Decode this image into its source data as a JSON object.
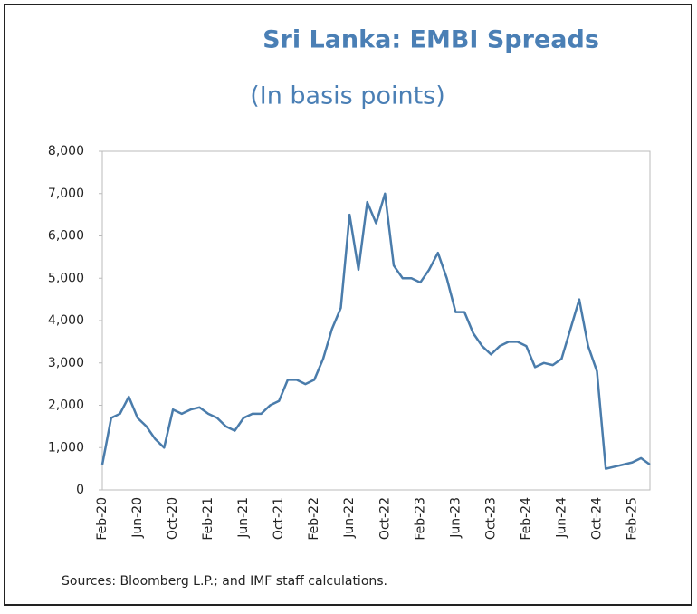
{
  "chart_data": {
    "type": "line",
    "title": "Sri Lanka: EMBI Spreads",
    "subtitle": "(In basis points)",
    "source": "Sources: Bloomberg L.P.; and IMF staff calculations.",
    "x": [
      "Feb-20",
      null,
      null,
      null,
      "Jun-20",
      null,
      null,
      null,
      "Oct-20",
      null,
      null,
      null,
      "Feb-21",
      null,
      null,
      null,
      "Jun-21",
      null,
      null,
      null,
      "Oct-21",
      null,
      null,
      null,
      "Feb-22",
      null,
      null,
      null,
      "Jun-22",
      null,
      null,
      null,
      "Oct-22",
      null,
      null,
      null,
      "Feb-23",
      null,
      null,
      null,
      "Jun-23",
      null,
      null,
      null,
      "Oct-23",
      null,
      null,
      null,
      "Feb-24",
      null,
      null,
      null,
      "Jun-24",
      null,
      null,
      null,
      "Oct-24",
      null,
      null,
      null,
      "Feb-25",
      null,
      null
    ],
    "values": [
      600,
      1700,
      1800,
      2200,
      1700,
      1500,
      1200,
      1000,
      1900,
      1800,
      1900,
      1950,
      1800,
      1700,
      1500,
      1400,
      1700,
      1800,
      1800,
      2000,
      2100,
      2600,
      2600,
      2500,
      2600,
      3100,
      3800,
      4300,
      6500,
      5200,
      6800,
      6300,
      7000,
      5300,
      5000,
      5000,
      4900,
      5200,
      5600,
      5000,
      4200,
      4200,
      3700,
      3400,
      3200,
      3400,
      3500,
      3500,
      3400,
      2900,
      3000,
      2950,
      3100,
      3800,
      4500,
      3400,
      2800,
      500,
      550,
      600,
      650,
      750,
      600
    ],
    "color": "#4a7cab",
    "ylim": [
      0,
      8000
    ],
    "yticks": [
      0,
      {
        "value": 1000,
        "label": "1,000"
      },
      {
        "value": 2000,
        "label": "2,000"
      },
      {
        "value": 3000,
        "label": "3,000"
      },
      {
        "value": 4000,
        "label": "4,000"
      },
      {
        "value": 5000,
        "label": "5,000"
      },
      {
        "value": 6000,
        "label": "6,000"
      },
      {
        "value": 7000,
        "label": "7,000"
      },
      {
        "value": 8000,
        "label": "8,000"
      }
    ],
    "grid": false
  }
}
